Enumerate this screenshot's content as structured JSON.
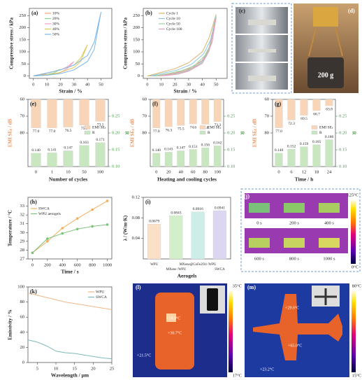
{
  "chart_data": [
    {
      "type": "line",
      "label": "(a)",
      "xlabel": "Strain / %",
      "ylabel": "Compressive stress / kPa",
      "xlim": [
        -3,
        58
      ],
      "xticks": [
        0,
        10,
        20,
        30,
        40,
        50
      ],
      "ylim": [
        -10,
        280
      ],
      "yticks": [
        0,
        50,
        100,
        150,
        200,
        250
      ],
      "legend": "upper left",
      "series": [
        {
          "name": "10%",
          "color": "#f2a57a",
          "x": [
            0,
            3,
            6,
            8,
            10,
            8,
            5,
            2,
            0
          ],
          "values": [
            0,
            3,
            5,
            8,
            12,
            6,
            3,
            1,
            0
          ]
        },
        {
          "name": "20%",
          "color": "#8fd18f",
          "x": [
            0,
            5,
            10,
            15,
            20,
            15,
            10,
            5,
            0
          ],
          "values": [
            0,
            6,
            12,
            18,
            28,
            12,
            6,
            2,
            0
          ]
        },
        {
          "name": "30%",
          "color": "#f2a0c8",
          "x": [
            0,
            10,
            20,
            25,
            30,
            25,
            20,
            10,
            0
          ],
          "values": [
            0,
            12,
            25,
            38,
            60,
            30,
            14,
            4,
            0
          ]
        },
        {
          "name": "40%",
          "color": "#e0c85a",
          "x": [
            0,
            10,
            20,
            30,
            35,
            40,
            35,
            30,
            20,
            10,
            0
          ],
          "values": [
            0,
            12,
            25,
            45,
            75,
            130,
            60,
            35,
            15,
            4,
            0
          ]
        },
        {
          "name": "50%",
          "color": "#7ab6e8",
          "x": [
            0,
            10,
            20,
            30,
            40,
            45,
            50,
            45,
            40,
            30,
            20,
            10,
            0
          ],
          "values": [
            0,
            12,
            25,
            45,
            85,
            140,
            265,
            110,
            60,
            25,
            10,
            3,
            0
          ]
        }
      ]
    },
    {
      "type": "line",
      "label": "(b)",
      "xlabel": "Strain / %",
      "ylabel": "Compressive stress / kPa",
      "xlim": [
        -3,
        58
      ],
      "xticks": [
        0,
        10,
        20,
        30,
        40,
        50
      ],
      "ylim": [
        -10,
        280
      ],
      "yticks": [
        0,
        50,
        100,
        150,
        200,
        250
      ],
      "legend": "upper left",
      "series": [
        {
          "name": "Cycle 1",
          "color": "#d9b36a",
          "x": [
            0,
            10,
            20,
            30,
            40,
            45,
            50,
            45,
            40,
            30,
            20,
            10,
            0
          ],
          "values": [
            0,
            15,
            30,
            55,
            100,
            160,
            255,
            120,
            65,
            30,
            12,
            3,
            0
          ]
        },
        {
          "name": "Cycle 10",
          "color": "#8cc7e0",
          "x": [
            2,
            12,
            22,
            32,
            41,
            46,
            50,
            45,
            40,
            30,
            20,
            10,
            2
          ],
          "values": [
            0,
            12,
            25,
            48,
            92,
            150,
            250,
            115,
            60,
            25,
            10,
            2,
            0
          ]
        },
        {
          "name": "Cycle 50",
          "color": "#9bd39b",
          "x": [
            5,
            15,
            25,
            34,
            42,
            47,
            50,
            45,
            40,
            30,
            20,
            12,
            5
          ],
          "values": [
            0,
            10,
            22,
            42,
            85,
            142,
            245,
            110,
            55,
            22,
            8,
            2,
            0
          ]
        },
        {
          "name": "Cycle 100",
          "color": "#e8a0c0",
          "x": [
            8,
            18,
            27,
            35,
            43,
            47,
            50,
            45,
            40,
            30,
            22,
            14,
            8
          ],
          "values": [
            0,
            9,
            20,
            40,
            82,
            138,
            240,
            105,
            52,
            20,
            7,
            2,
            0
          ]
        }
      ]
    },
    {
      "type": "bar",
      "label": "(e)",
      "xlabel": "Number of cycles",
      "ylabel": "EMI SEₜ / dB",
      "y2label": "R",
      "categories": [
        "0",
        "1",
        "10",
        "50",
        "100"
      ],
      "ylim": [
        100,
        60
      ],
      "yticks": [
        60,
        70,
        80
      ],
      "y2lim": [
        0.1,
        0.3
      ],
      "y2ticks": [
        {
          "value": 0.1,
          "label": "0.10"
        },
        0.15,
        {
          "value": 0.2,
          "label": "0.20"
        },
        0.25
      ],
      "legend": "center right",
      "series": [
        {
          "name": "EMI SEₜ",
          "color": "#f9d5b8",
          "values": [
            77.0,
            77.0,
            76.5,
            75.3,
            73.1
          ],
          "value_labels": [
            "77.0",
            "77.0",
            "76.5",
            "75.3",
            "73.1"
          ]
        },
        {
          "name": "R",
          "color": "#c8e6c0",
          "axis": "y2",
          "values": [
            0.14,
            0.141,
            0.147,
            0.163,
            0.171
          ],
          "value_labels": [
            "0.140",
            "0.141",
            "0.147",
            "0.163",
            "0.171"
          ]
        }
      ]
    },
    {
      "type": "bar",
      "label": "(f)",
      "xlabel": "Heating and cooling cycles",
      "ylabel": "EMI SEₜ / dB",
      "y2label": "R",
      "categories": [
        "0",
        "20",
        "40",
        "60",
        "80",
        "100"
      ],
      "ylim": [
        100,
        60
      ],
      "yticks": [
        60,
        70,
        80
      ],
      "y2lim": [
        0.1,
        0.3
      ],
      "y2ticks": [
        {
          "value": 0.1,
          "label": "0.10"
        },
        0.15,
        {
          "value": 0.2,
          "label": "0.20"
        },
        0.25
      ],
      "legend": "center right",
      "series": [
        {
          "name": "EMI SEₜ",
          "color": "#f9d5b8",
          "values": [
            77.0,
            76.3,
            75.5,
            74.6,
            74.8,
            73.3
          ],
          "value_labels": [
            "77.0",
            "76.3",
            "75.5",
            "74.6",
            "74.8",
            "73.3"
          ]
        },
        {
          "name": "R",
          "color": "#c8e6c0",
          "axis": "y2",
          "values": [
            0.14,
            0.143,
            0.147,
            0.151,
            0.156,
            0.162
          ],
          "value_labels": [
            "0.140",
            "0.143",
            "0.147",
            "0.151",
            "0.156",
            "0.162"
          ]
        }
      ]
    },
    {
      "type": "bar",
      "label": "(g)",
      "xlabel": "Time / h",
      "ylabel": "EMI SEₜ / dB",
      "y2label": "R",
      "categories": [
        "0",
        "6",
        "12",
        "18",
        "24"
      ],
      "ylim": [
        100,
        60
      ],
      "yticks": [
        60,
        70,
        80
      ],
      "y2lim": [
        0.1,
        0.3
      ],
      "y2ticks": [
        {
          "value": 0.1,
          "label": "0.10"
        },
        0.15,
        {
          "value": 0.2,
          "label": "0.20"
        },
        0.25
      ],
      "legend": "center right",
      "series": [
        {
          "name": "EMI SEₜ",
          "color": "#f9d5b8",
          "values": [
            77.0,
            72.3,
            69.5,
            66.7,
            63.8
          ],
          "value_labels": [
            "77.0",
            "72.3",
            "69.5",
            "66.7",
            "63.8"
          ]
        },
        {
          "name": "R",
          "color": "#c8e6c0",
          "axis": "y2",
          "values": [
            0.14,
            0.152,
            0.159,
            0.165,
            0.18
          ],
          "value_labels": [
            "0.140",
            "0.152",
            "0.159",
            "0.165",
            "0.180"
          ]
        }
      ]
    },
    {
      "type": "line",
      "label": "(h)",
      "xlabel": "Time / s",
      "ylabel": "Temperature / °C",
      "markers": true,
      "x": [
        0,
        200,
        400,
        600,
        800,
        1000
      ],
      "xlim": [
        -60,
        1060
      ],
      "xticks": [
        0,
        200,
        400,
        600,
        800,
        1000
      ],
      "ylim": [
        27,
        34
      ],
      "yticks": [
        27,
        28,
        29,
        30,
        31,
        32,
        33
      ],
      "legend": "upper left",
      "series": [
        {
          "name": "SWCA",
          "color": "#f0b060",
          "values": [
            27.7,
            29.0,
            30.5,
            31.6,
            32.6,
            33.6
          ]
        },
        {
          "name": "WPU aerogels",
          "color": "#7cc47c",
          "values": [
            27.7,
            29.3,
            29.9,
            30.4,
            30.7,
            30.9
          ]
        }
      ]
    },
    {
      "type": "bar",
      "label": "(i)",
      "xlabel": "Aerogels",
      "ylabel": "λ / (W/m·K)",
      "categories": [
        "WPU",
        "MXene /WPU",
        "MXene@CoFe2O4 /WPU",
        "SWCA"
      ],
      "ylim": [
        0,
        0.12
      ],
      "yticks": [
        0.04,
        0.08,
        0.12
      ],
      "values": [
        0.0679,
        0.0843,
        0.0916,
        0.0941
      ],
      "colors": [
        "#fbe0c8",
        "#d3efc9",
        "#cdeee8",
        "#ddd6f0"
      ]
    },
    {
      "type": "line",
      "label": "(k)",
      "xlabel": "Wavelength / μm",
      "ylabel": "Emissivity / %",
      "x": [
        2.5,
        5,
        7.5,
        10,
        12.5,
        15,
        17.5,
        20,
        22.5,
        25
      ],
      "xlim": [
        2.5,
        25
      ],
      "xticks": [
        5,
        10,
        15,
        20,
        25
      ],
      "ylim": [
        0,
        100
      ],
      "yticks": [
        0,
        20,
        40,
        60,
        80,
        100
      ],
      "legend": "upper right",
      "series": [
        {
          "name": "WPU",
          "color": "#f0b888",
          "values": [
            92,
            89,
            86,
            83,
            80,
            78,
            76,
            74,
            72,
            70
          ]
        },
        {
          "name": "SWCA",
          "color": "#7fb8b8",
          "values": [
            30,
            27,
            22,
            15,
            13,
            12,
            10,
            8,
            6,
            5
          ]
        }
      ]
    }
  ],
  "photos": [
    {
      "label": "(c)"
    },
    {
      "label": "(d)",
      "texts": [
        "200 g"
      ]
    },
    {
      "label": "(j)",
      "texts": [
        "0 s",
        "200 s",
        "400 s",
        "600 s",
        "800 s",
        "1000 s"
      ],
      "scale": [
        "125°C",
        "0°C"
      ]
    },
    {
      "label": "(l)",
      "texts": [
        "+24.9°C",
        "+30.7°C",
        "+21.5°C"
      ],
      "scale": [
        "35°C",
        "17°C"
      ]
    },
    {
      "label": "(m)",
      "texts": [
        "+29.6°C",
        "+65.0°C",
        "+23.2°C"
      ],
      "scale": [
        "80°C",
        "15°C"
      ]
    }
  ]
}
